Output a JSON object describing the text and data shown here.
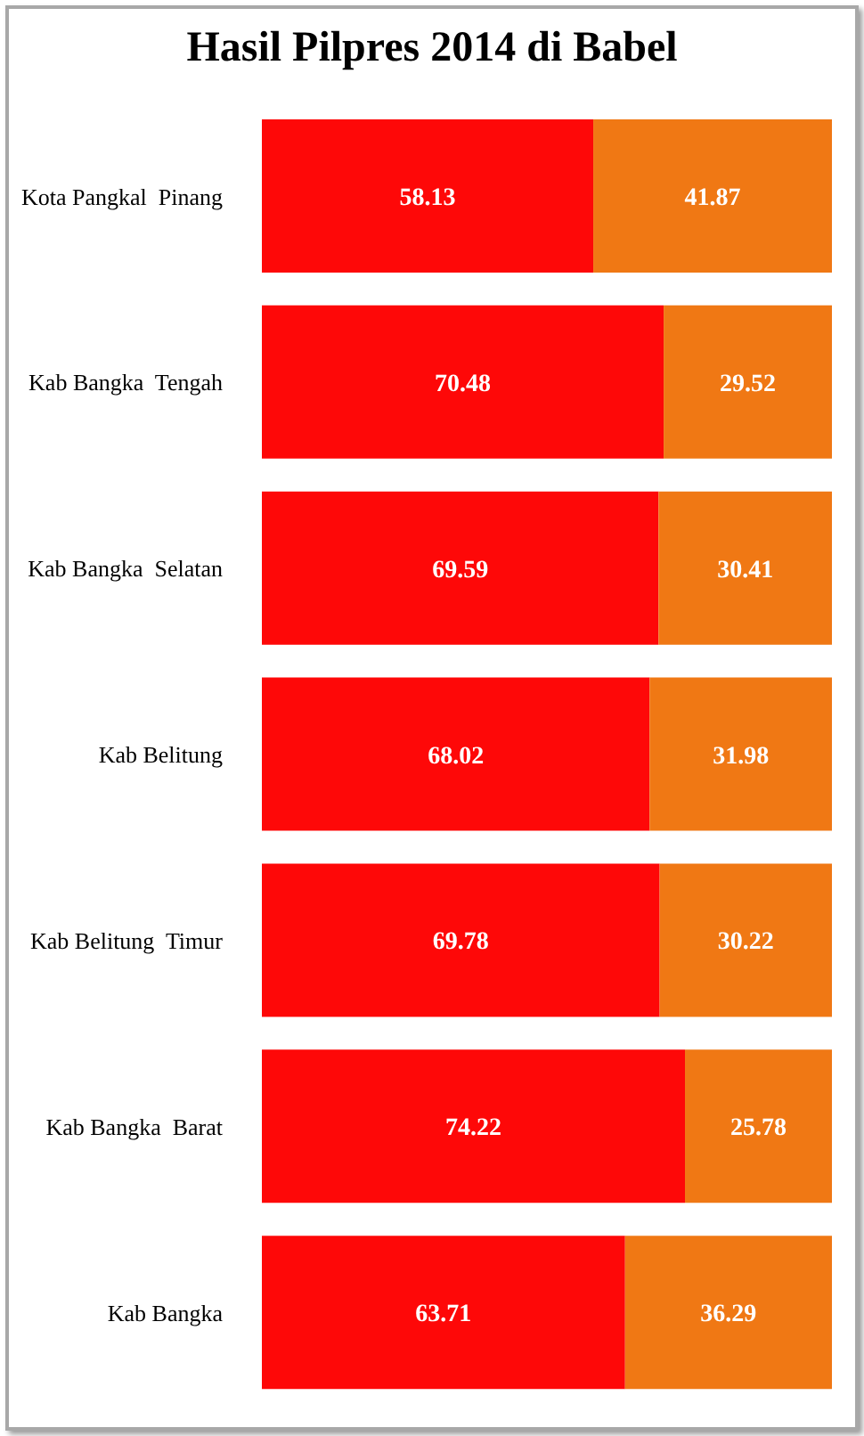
{
  "chart_data": {
    "type": "bar",
    "title": "Hasil Pilpres 2014 di Babel",
    "orientation": "horizontal",
    "stacked": true,
    "categories": [
      "Kota Pangkal  Pinang",
      "Kab Bangka  Tengah",
      "Kab Bangka  Selatan",
      "Kab Belitung",
      "Kab Belitung  Timur",
      "Kab Bangka  Barat",
      "Kab Bangka"
    ],
    "series": [
      {
        "color": "#fe0808",
        "values": [
          58.13,
          70.48,
          69.59,
          68.02,
          69.78,
          74.22,
          63.71
        ]
      },
      {
        "color": "#f07814",
        "values": [
          41.87,
          29.52,
          30.41,
          31.98,
          30.22,
          25.78,
          36.29
        ]
      }
    ],
    "xlim": [
      0,
      100
    ],
    "data_labels": true,
    "tick_labels": "y"
  }
}
